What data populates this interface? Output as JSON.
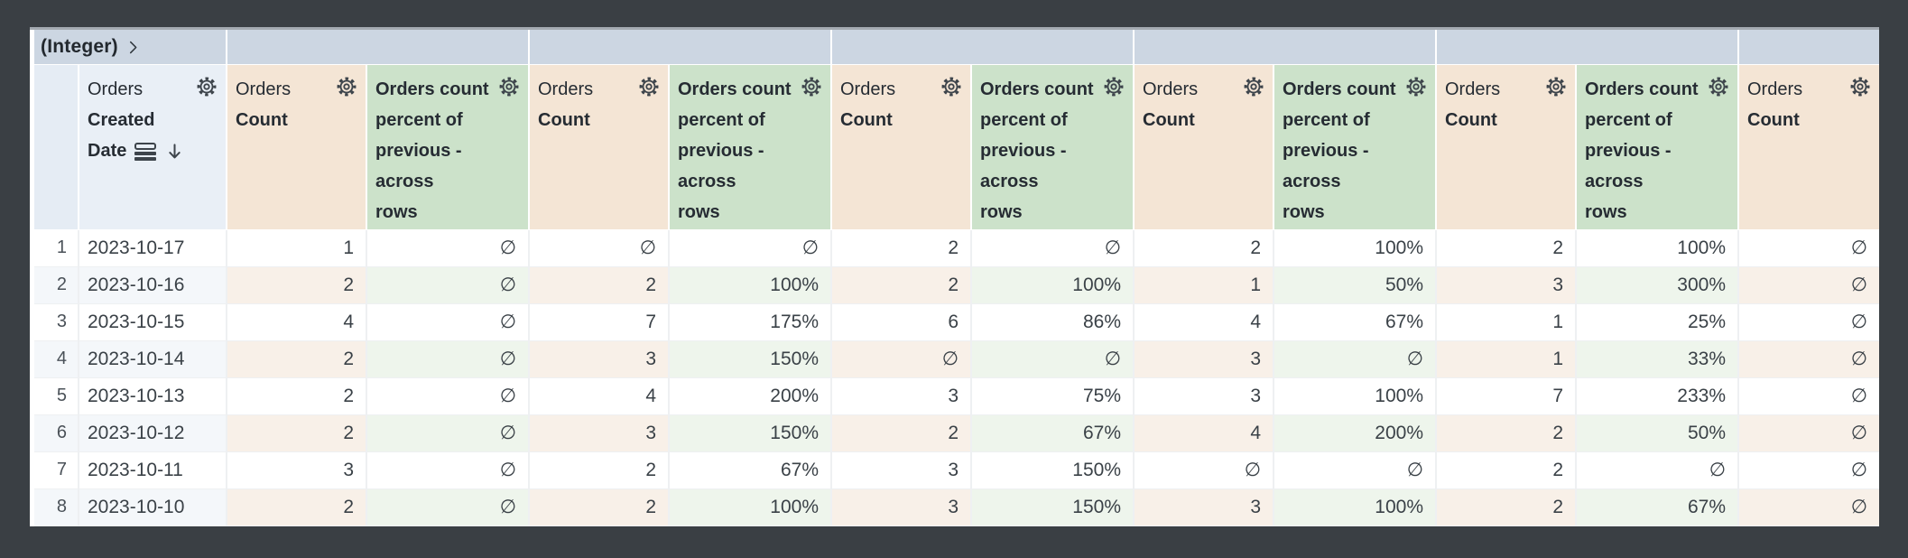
{
  "pivot": {
    "field_label": "(Integer)",
    "values": [
      "",
      "",
      "",
      "",
      "",
      ""
    ]
  },
  "row_header": {
    "group": "Orders",
    "field_lines": [
      "Created",
      "Date"
    ],
    "icons": [
      "subtotal-icon",
      "sort-desc-icon",
      "gear-icon"
    ]
  },
  "measure_headers": {
    "count": {
      "group": "Orders",
      "field": "Count"
    },
    "percent_full_name": "Orders count percent of previous - across rows",
    "percent_lines": [
      "Orders count",
      "percent of",
      "previous -",
      "across",
      "rows"
    ]
  },
  "column_order": [
    "count",
    "percent",
    "count",
    "percent",
    "count",
    "percent",
    "count",
    "percent",
    "count",
    "percent",
    "count"
  ],
  "rows": [
    {
      "n": "1",
      "date": "2023-10-17",
      "values": [
        "1",
        "∅",
        "∅",
        "∅",
        "2",
        "∅",
        "2",
        "100%",
        "2",
        "100%",
        "∅"
      ]
    },
    {
      "n": "2",
      "date": "2023-10-16",
      "values": [
        "2",
        "∅",
        "2",
        "100%",
        "2",
        "100%",
        "1",
        "50%",
        "3",
        "300%",
        "∅"
      ]
    },
    {
      "n": "3",
      "date": "2023-10-15",
      "values": [
        "4",
        "∅",
        "7",
        "175%",
        "6",
        "86%",
        "4",
        "67%",
        "1",
        "25%",
        "∅"
      ]
    },
    {
      "n": "4",
      "date": "2023-10-14",
      "values": [
        "2",
        "∅",
        "3",
        "150%",
        "∅",
        "∅",
        "3",
        "∅",
        "1",
        "33%",
        "∅"
      ]
    },
    {
      "n": "5",
      "date": "2023-10-13",
      "values": [
        "2",
        "∅",
        "4",
        "200%",
        "3",
        "75%",
        "3",
        "100%",
        "7",
        "233%",
        "∅"
      ]
    },
    {
      "n": "6",
      "date": "2023-10-12",
      "values": [
        "2",
        "∅",
        "3",
        "150%",
        "2",
        "67%",
        "4",
        "200%",
        "2",
        "50%",
        "∅"
      ]
    },
    {
      "n": "7",
      "date": "2023-10-11",
      "values": [
        "3",
        "∅",
        "2",
        "67%",
        "3",
        "150%",
        "∅",
        "∅",
        "2",
        "∅",
        "∅"
      ]
    },
    {
      "n": "8",
      "date": "2023-10-10",
      "values": [
        "2",
        "∅",
        "2",
        "100%",
        "3",
        "150%",
        "3",
        "100%",
        "2",
        "67%",
        "∅"
      ]
    }
  ],
  "null_symbol": "∅",
  "colors": {
    "frame_bg": "#3a3f44",
    "pivot_bg": "#ccd6e2",
    "rownum_header_bg": "#e5ecf4",
    "date_header_bg": "#e9eff6",
    "count_header_bg": "#f4e5d5",
    "pct_header_bg": "#cce2ca",
    "row_tint_base": "#f4f7fa",
    "row_tint_count": "#f8f0e8",
    "row_tint_pct": "#eef5ec",
    "grid_line": "#eef0f2",
    "header_text": "#262c33",
    "data_text": "#3a4147",
    "rownum_text": "#4a5158",
    "icon_color": "#3d444b"
  }
}
